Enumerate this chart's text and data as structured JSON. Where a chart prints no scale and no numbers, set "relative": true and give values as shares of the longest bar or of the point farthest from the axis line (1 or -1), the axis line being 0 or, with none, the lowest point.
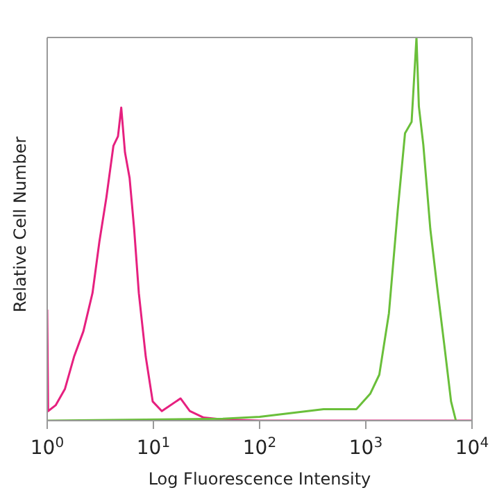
{
  "chart_data": {
    "type": "line",
    "relative": true,
    "xlabel": "Log Fluorescence Intensity",
    "ylabel": "Relative Cell Number",
    "log": "x",
    "xlim": [
      1,
      10000
    ],
    "xticks": [
      {
        "value": 1,
        "label": "10$^{0}$"
      },
      {
        "value": 10,
        "label": "10$^{1}$"
      },
      {
        "value": 100,
        "label": "10$^{2}$"
      },
      {
        "value": 1000,
        "label": "10$^{3}$"
      },
      {
        "value": 10000,
        "label": "10$^{4}$"
      }
    ],
    "series": [
      {
        "color": "#e6207f",
        "x": [
          1,
          1.02,
          1.2,
          1.47,
          1.79,
          2.19,
          2.67,
          3.1,
          3.61,
          4.2,
          4.64,
          4.98,
          5.4,
          5.97,
          6.59,
          7.29,
          8.47,
          9.85,
          12,
          18,
          22,
          29.7,
          44.4,
          100,
          1000,
          10000
        ],
        "values": [
          0.29,
          0.025,
          0.04,
          0.083,
          0.167,
          0.233,
          0.333,
          0.467,
          0.583,
          0.717,
          0.742,
          0.817,
          0.7,
          0.633,
          0.5,
          0.333,
          0.167,
          0.05,
          0.025,
          0.058,
          0.025,
          0.008,
          0.003,
          0,
          0,
          0
        ]
      },
      {
        "color": "#6abf3a",
        "x": [
          1,
          45,
          100,
          200,
          400,
          815,
          1100,
          1340,
          1650,
          2000,
          2340,
          2700,
          3000,
          3160,
          3480,
          4050,
          4690,
          5470,
          6350,
          7050
        ],
        "values": [
          0,
          0.005,
          0.01,
          0.02,
          0.03,
          0.03,
          0.07,
          0.12,
          0.28,
          0.55,
          0.75,
          0.78,
          1,
          0.82,
          0.72,
          0.5,
          0.35,
          0.2,
          0.05,
          0
        ]
      }
    ]
  }
}
